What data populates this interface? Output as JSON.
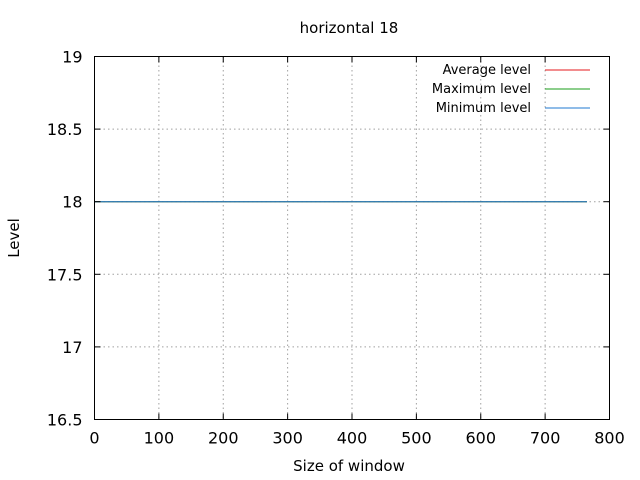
{
  "chart_data": {
    "type": "line",
    "title": "horizontal 18",
    "xlabel": "Size of window",
    "ylabel": "Level",
    "xlim": [
      0,
      800
    ],
    "ylim": [
      16.5,
      19
    ],
    "xticks": [
      0,
      100,
      200,
      300,
      400,
      500,
      600,
      700,
      800
    ],
    "yticks": [
      16.5,
      17,
      17.5,
      18,
      18.5,
      19
    ],
    "xtick_labels": [
      "0",
      "100",
      "200",
      "300",
      "400",
      "500",
      "600",
      "700",
      "800"
    ],
    "ytick_labels": [
      "16.5",
      "17",
      "17.5",
      "18",
      "18.5",
      "19"
    ],
    "grid": true,
    "legend_position": "top-right",
    "series": [
      {
        "name": "Average level",
        "color": "#e41a1c",
        "x": [
          0,
          765
        ],
        "y": [
          18,
          18
        ]
      },
      {
        "name": "Maximum level",
        "color": "#1a9e1a",
        "x": [
          0,
          765
        ],
        "y": [
          18,
          18
        ]
      },
      {
        "name": "Minimum level",
        "color": "#1f78d1",
        "x": [
          0,
          765
        ],
        "y": [
          18,
          18
        ]
      }
    ]
  }
}
